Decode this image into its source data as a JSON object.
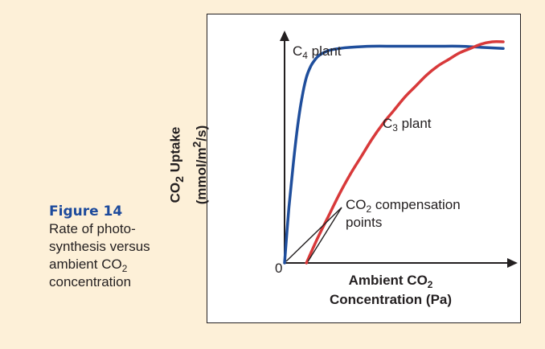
{
  "caption": {
    "label": "Figure 14",
    "line1": "Rate of photo-",
    "line2": "synthesis versus",
    "line3_pre": "ambient CO",
    "line3_sub": "2",
    "line4": "concentration"
  },
  "colors": {
    "c4": "#1f4e9c",
    "c3": "#d8393a",
    "figure_title": "#1c4a9c",
    "background": "#fdf0d8",
    "axis": "#231f20"
  },
  "chart_data": {
    "type": "line",
    "title": "",
    "xlabel_line1_pre": "Ambient CO",
    "xlabel_line1_sub": "2",
    "xlabel_line2": "Concentration (Pa)",
    "ylabel_line1_pre": "CO",
    "ylabel_line1_sub": "2",
    "ylabel_line1_post": " Uptake",
    "ylabel_line2_pre": "(mmol/m",
    "ylabel_line2_sup": "2",
    "ylabel_line2_post": "/s)",
    "origin_label": "0",
    "xlim": [
      0,
      100
    ],
    "ylim": [
      0,
      100
    ],
    "grid": false,
    "axes_arrows": true,
    "series": [
      {
        "name_pre": "C",
        "name_sub": "4",
        "name_post": " plant",
        "color": "#1f4e9c",
        "x": [
          0,
          2,
          4,
          6,
          8,
          10,
          12,
          14,
          16,
          20,
          25,
          30,
          40,
          50,
          60,
          70,
          80,
          90,
          100
        ],
        "y": [
          0,
          25,
          45,
          62,
          75,
          84,
          89,
          92,
          94,
          96,
          97,
          97.5,
          98,
          98,
          98,
          98,
          98,
          97.5,
          97
        ]
      },
      {
        "name_pre": "C",
        "name_sub": "3",
        "name_post": " plant",
        "color": "#d8393a",
        "x": [
          10,
          15,
          20,
          25,
          30,
          35,
          40,
          45,
          50,
          55,
          60,
          65,
          70,
          75,
          80,
          85,
          90,
          95,
          100
        ],
        "y": [
          0,
          11,
          21,
          31,
          40,
          48,
          56,
          63,
          69,
          75,
          80,
          85,
          89,
          92,
          95,
          97,
          99,
          100,
          100
        ]
      }
    ],
    "annotation": {
      "line1_pre": "CO",
      "line1_sub": "2",
      "line1_post": " compensation",
      "line2": "points",
      "points_x": [
        0,
        10
      ]
    }
  }
}
